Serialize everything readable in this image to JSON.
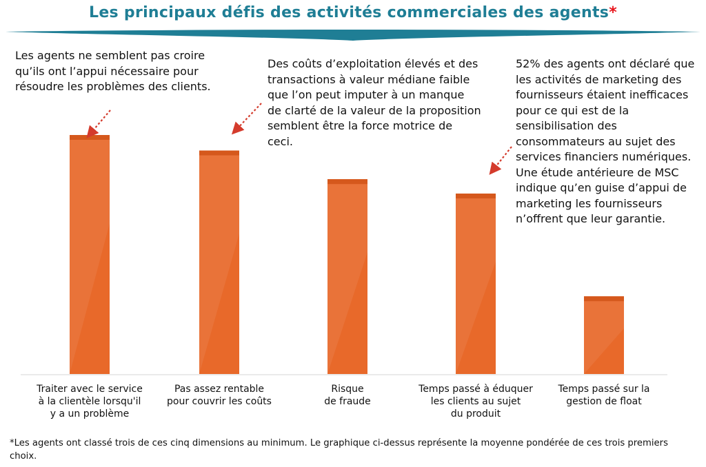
{
  "title": {
    "text": "Les principaux défis des activités commerciales des agents",
    "marker": "*"
  },
  "annotations": [
    "Les agents ne semblent pas croire qu’ils ont l’appui nécessaire pour résoudre les problèmes des clients.",
    "Des coûts d’exploitation élevés et des transactions à valeur médiane faible que l’on peut imputer à un manque de clarté de la valeur de la proposition semblent être la force motrice de ceci.",
    "52% des agents ont déclaré que les activités de marketing des fournisseurs étaient inefficaces pour ce qui est de  la sensibilisation des consommateurs au sujet des services financiers numériques. Une étude antérieure de MSC indique qu’en guise d’appui de marketing les fournisseurs n’offrent que leur garantie."
  ],
  "footnote": "*Les agents ont classé trois de ces cinq dimensions au minimum. Le graphique ci-dessus représente la moyenne pondérée de ces trois premiers choix.",
  "colors": {
    "title": "#1f7e95",
    "bar": "#e8692a",
    "bar_top": "#d5581c",
    "arrow": "#d43b2c"
  },
  "chart_data": {
    "type": "bar",
    "categories": [
      "Traiter avec le service\nà la clientèle lorsqu'il\ny a un problème",
      "Pas assez rentable\npour couvrir les coûts",
      "Risque\nde fraude",
      "Temps passé à éduquer\nles clients au sujet\ndu produit",
      "Temps passé sur la\ngestion de float"
    ],
    "values": [
      100,
      93.5,
      81.5,
      75.5,
      32.5
    ],
    "ylim": [
      0,
      100
    ],
    "title": "",
    "xlabel": "",
    "ylabel": "",
    "grid": false,
    "legend": "none"
  }
}
